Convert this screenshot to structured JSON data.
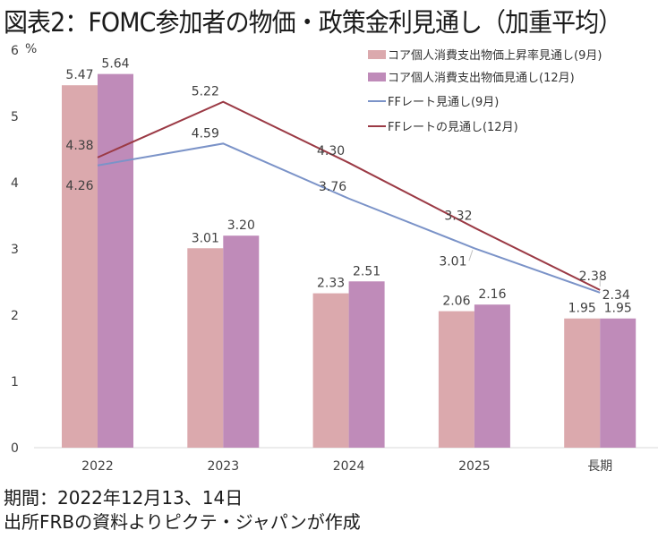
{
  "title": "図表2：FOMC参加者の物価・政策金利見通し（加重平均）",
  "footer": {
    "period": "期間：2022年12月13、14日",
    "source": "出所FRBの資料よりピクテ・ジャパンが作成"
  },
  "chart_data": {
    "type": "bar",
    "title": "図表2：FOMC参加者の物価・政策金利見通し（加重平均）",
    "xlabel": "",
    "ylabel": "%",
    "ylim": [
      0,
      6
    ],
    "yticks": [
      "0",
      "1",
      "2",
      "3",
      "4",
      "5",
      "6"
    ],
    "y_unit_label": "%",
    "grid": false,
    "legend_position": "top-right",
    "categories": [
      "2022",
      "2023",
      "2024",
      "2025",
      "長期"
    ],
    "series": [
      {
        "name": "コア個人消費支出物価上昇率見通し(9月)",
        "kind": "bar",
        "color": "#DBA9AD",
        "values": [
          5.47,
          3.01,
          2.33,
          2.06,
          1.95
        ],
        "labels": [
          "5.47",
          "3.01",
          "2.33",
          "2.06",
          "1.95"
        ]
      },
      {
        "name": "コア個人消費支出物価見通し(12月)",
        "kind": "bar",
        "color": "#BF8BB9",
        "values": [
          5.64,
          3.2,
          2.51,
          2.16,
          1.95
        ],
        "labels": [
          "5.64",
          "3.20",
          "2.51",
          "2.16",
          "1.95"
        ]
      },
      {
        "name": "FFレート見通し(9月)",
        "kind": "line",
        "color": "#7B93C8",
        "values": [
          4.26,
          4.59,
          3.76,
          3.01,
          2.34
        ],
        "labels": [
          "4.26",
          "4.59",
          "3.76",
          "3.01",
          "2.34"
        ]
      },
      {
        "name": "FFレートの見通し(12月)",
        "kind": "line",
        "color": "#9B3A45",
        "values": [
          4.38,
          5.22,
          4.3,
          3.32,
          2.38
        ],
        "labels": [
          "4.38",
          "5.22",
          "4.30",
          "3.32",
          "2.38"
        ]
      }
    ]
  }
}
